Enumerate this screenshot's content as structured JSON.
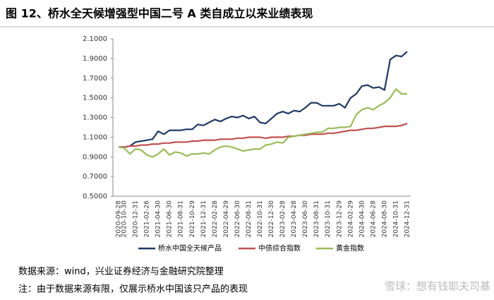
{
  "chart_data": {
    "type": "line",
    "title": "图 12、桥水全天候增强型中国二号 A 类自成立以来业绩表现",
    "source": "数据来源：wind，兴业证券经济与金融研究院整理",
    "note": "注：由于数据来源有限，仅展示桥水中国该只产品的表现",
    "watermark": "雪球：想有钱耶夫司基",
    "categories": [
      "2020-09-28",
      "2020-10-30",
      null,
      "2020-12-31",
      null,
      "2021-02-26",
      null,
      "2021-04-30",
      null,
      "2021-06-30",
      null,
      "2021-08-31",
      null,
      "2021-10-29",
      null,
      "2021-12-31",
      null,
      "2022-02-28",
      null,
      "2022-04-29",
      null,
      "2022-06-30",
      null,
      "2022-08-31",
      null,
      "2022-10-31",
      null,
      "2022-12-30",
      null,
      "2023-02-28",
      null,
      "2023-04-28",
      null,
      "2023-06-30",
      null,
      "2023-08-31",
      null,
      "2023-10-31",
      null,
      "2023-12-29",
      null,
      "2024-02-29",
      null,
      "2024-04-30",
      null,
      "2024-06-28",
      null,
      "2024-08-30",
      null,
      "2024-10-31",
      null,
      "2024-12-31"
    ],
    "series": [
      {
        "name": "桥水中国全天候产品",
        "color": "#1f3864",
        "values": [
          1.0,
          1.0,
          1.01,
          1.05,
          1.06,
          1.07,
          1.08,
          1.16,
          1.13,
          1.17,
          1.17,
          1.17,
          1.18,
          1.18,
          1.23,
          1.22,
          1.25,
          1.28,
          1.26,
          1.29,
          1.31,
          1.3,
          1.32,
          1.29,
          1.31,
          1.25,
          1.24,
          1.29,
          1.34,
          1.36,
          1.34,
          1.37,
          1.36,
          1.4,
          1.45,
          1.45,
          1.42,
          1.42,
          1.42,
          1.44,
          1.4,
          1.5,
          1.54,
          1.62,
          1.63,
          1.6,
          1.61,
          1.58,
          1.89,
          1.93,
          1.92,
          1.97
        ]
      },
      {
        "name": "中债综合指数",
        "color": "#c0504d",
        "values": [
          1.0,
          1.0,
          1.01,
          1.01,
          1.02,
          1.02,
          1.03,
          1.03,
          1.04,
          1.04,
          1.05,
          1.05,
          1.05,
          1.06,
          1.06,
          1.07,
          1.07,
          1.07,
          1.08,
          1.08,
          1.08,
          1.09,
          1.09,
          1.1,
          1.1,
          1.1,
          1.09,
          1.1,
          1.1,
          1.1,
          1.11,
          1.11,
          1.12,
          1.12,
          1.13,
          1.13,
          1.13,
          1.14,
          1.14,
          1.15,
          1.16,
          1.17,
          1.17,
          1.18,
          1.19,
          1.19,
          1.2,
          1.21,
          1.21,
          1.21,
          1.22,
          1.24
        ]
      },
      {
        "name": "黄金指数",
        "color": "#9bbb59",
        "values": [
          1.0,
          0.99,
          0.93,
          0.98,
          0.97,
          0.92,
          0.9,
          0.93,
          0.98,
          0.92,
          0.95,
          0.94,
          0.91,
          0.93,
          0.93,
          0.94,
          0.93,
          0.97,
          1.0,
          1.01,
          1.0,
          0.98,
          0.96,
          0.97,
          0.98,
          0.98,
          1.02,
          1.03,
          1.05,
          1.04,
          1.1,
          1.11,
          1.12,
          1.13,
          1.14,
          1.15,
          1.15,
          1.19,
          1.19,
          1.2,
          1.2,
          1.21,
          1.33,
          1.38,
          1.4,
          1.38,
          1.42,
          1.45,
          1.5,
          1.59,
          1.54,
          1.54
        ]
      }
    ],
    "ylim": [
      0.5,
      2.1
    ],
    "yticks": [
      {
        "value": 0.5,
        "label": "0.5000"
      },
      {
        "value": 0.7,
        "label": "0.7000"
      },
      {
        "value": 0.9,
        "label": "0.9000"
      },
      {
        "value": 1.1,
        "label": "1.1000"
      },
      {
        "value": 1.3,
        "label": "1.3000"
      },
      {
        "value": 1.5,
        "label": "1.5000"
      },
      {
        "value": 1.7,
        "label": "1.7000"
      },
      {
        "value": 1.9,
        "label": "1.9000"
      },
      {
        "value": 2.1,
        "label": "2.1000"
      }
    ],
    "grid": false,
    "legend": "bottom"
  }
}
